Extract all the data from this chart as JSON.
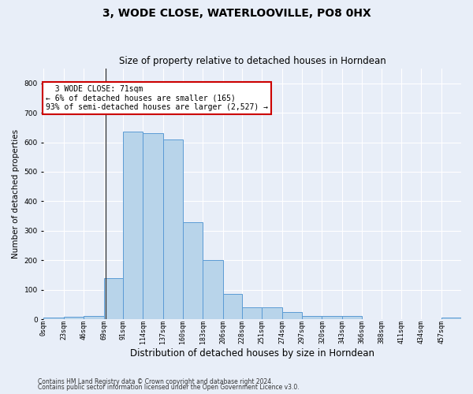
{
  "title": "3, WODE CLOSE, WATERLOOVILLE, PO8 0HX",
  "subtitle": "Size of property relative to detached houses in Horndean",
  "xlabel": "Distribution of detached houses by size in Horndean",
  "ylabel": "Number of detached properties",
  "footnote1": "Contains HM Land Registry data © Crown copyright and database right 2024.",
  "footnote2": "Contains public sector information licensed under the Open Government Licence v3.0.",
  "annotation_line1": "  3 WODE CLOSE: 71sqm",
  "annotation_line2": "← 6% of detached houses are smaller (165)",
  "annotation_line3": "93% of semi-detached houses are larger (2,527) →",
  "bar_values": [
    5,
    8,
    10,
    140,
    635,
    630,
    610,
    330,
    200,
    85,
    40,
    40,
    25,
    10,
    10,
    10,
    0,
    0,
    0,
    0,
    5
  ],
  "bin_edges": [
    0,
    23,
    46,
    69,
    91,
    114,
    137,
    160,
    183,
    206,
    228,
    251,
    274,
    297,
    320,
    343,
    366,
    388,
    411,
    434,
    457,
    480
  ],
  "tick_labels": [
    "0sqm",
    "23sqm",
    "46sqm",
    "69sqm",
    "91sqm",
    "114sqm",
    "137sqm",
    "160sqm",
    "183sqm",
    "206sqm",
    "228sqm",
    "251sqm",
    "274sqm",
    "297sqm",
    "320sqm",
    "343sqm",
    "366sqm",
    "388sqm",
    "411sqm",
    "434sqm",
    "457sqm"
  ],
  "marker_value": 71,
  "bar_color": "#b8d4ea",
  "bar_edge_color": "#5b9bd5",
  "background_color": "#e8eef8",
  "grid_color": "#ffffff",
  "annotation_box_facecolor": "#ffffff",
  "annotation_box_edgecolor": "#cc0000",
  "ylim": [
    0,
    850
  ],
  "yticks": [
    0,
    100,
    200,
    300,
    400,
    500,
    600,
    700,
    800
  ],
  "title_fontsize": 10,
  "subtitle_fontsize": 8.5,
  "ylabel_fontsize": 7.5,
  "xlabel_fontsize": 8.5,
  "tick_fontsize": 6,
  "annotation_fontsize": 7,
  "footnote_fontsize": 5.5
}
